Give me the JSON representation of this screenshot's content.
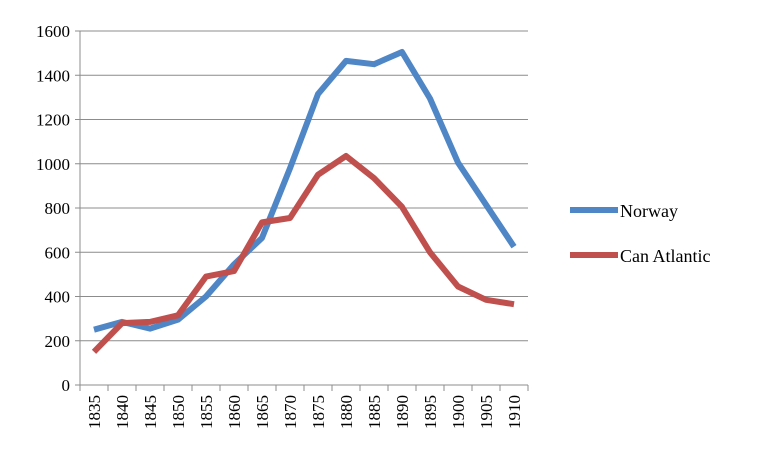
{
  "chart_data": {
    "type": "line",
    "title": "",
    "xlabel": "",
    "ylabel": "",
    "x": [
      "1835",
      "1840",
      "1845",
      "1850",
      "1855",
      "1860",
      "1865",
      "1870",
      "1875",
      "1880",
      "1885",
      "1890",
      "1895",
      "1900",
      "1905",
      "1910"
    ],
    "ylim": [
      0,
      1600
    ],
    "yticks": [
      0,
      200,
      400,
      600,
      800,
      1000,
      1200,
      1400,
      1600
    ],
    "grid": "horizontal",
    "legend_position": "right",
    "series": [
      {
        "name": "Norway",
        "color": "#4f86c6",
        "values": [
          250,
          285,
          255,
          295,
          400,
          545,
          665,
          980,
          1315,
          1465,
          1450,
          1505,
          1295,
          1005,
          815,
          625
        ]
      },
      {
        "name": "Can Atlantic",
        "color": "#c0504d",
        "values": [
          150,
          280,
          285,
          315,
          490,
          515,
          735,
          755,
          950,
          1035,
          935,
          805,
          600,
          445,
          385,
          365
        ]
      }
    ]
  }
}
